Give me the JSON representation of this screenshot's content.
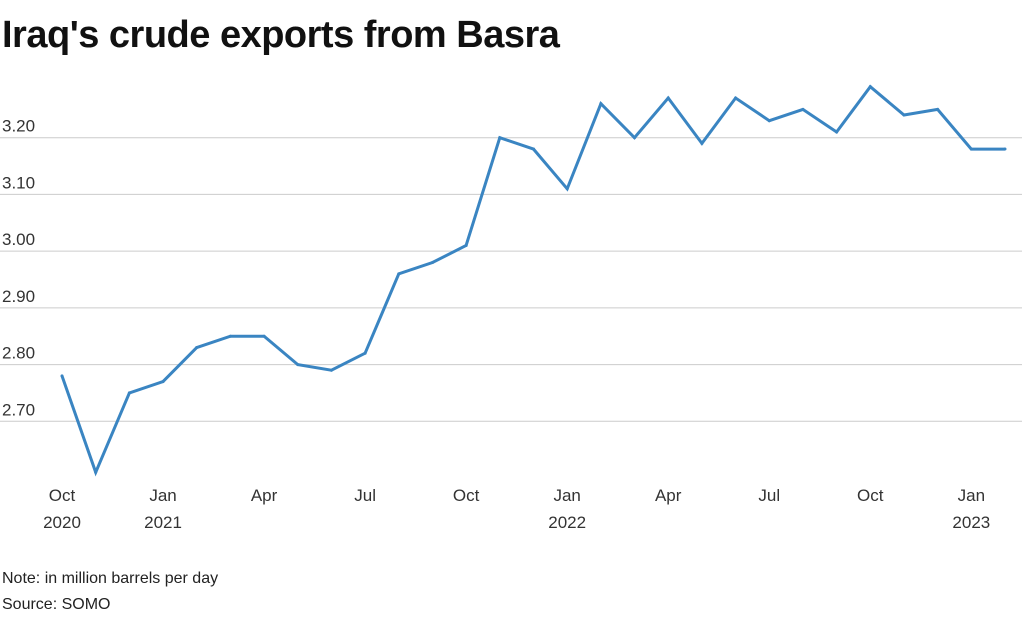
{
  "title": "Iraq's crude exports from Basra",
  "note": "Note: in million barrels per day",
  "source": "Source: SOMO",
  "colors": {
    "line": "#3a85c2",
    "grid": "#cccccc",
    "text": "#333333"
  },
  "chart_data": {
    "type": "line",
    "title": "Iraq's crude exports from Basra",
    "xlabel": "",
    "ylabel": "",
    "grid": true,
    "ylim": [
      2.6,
      3.3
    ],
    "yticks": [
      "2.70",
      "2.80",
      "2.90",
      "3.00",
      "3.10",
      "3.20"
    ],
    "yticks_values": [
      2.7,
      2.8,
      2.9,
      3.0,
      3.1,
      3.2
    ],
    "x": [
      "2020-10",
      "2020-11",
      "2020-12",
      "2021-01",
      "2021-02",
      "2021-03",
      "2021-04",
      "2021-05",
      "2021-06",
      "2021-07",
      "2021-08",
      "2021-09",
      "2021-10",
      "2021-11",
      "2021-12",
      "2022-01",
      "2022-02",
      "2022-03",
      "2022-04",
      "2022-05",
      "2022-06",
      "2022-07",
      "2022-08",
      "2022-09",
      "2022-10",
      "2022-11",
      "2022-12",
      "2023-01",
      "2023-02"
    ],
    "xticks": [
      {
        "x": "2020-10",
        "label": "Oct",
        "year": "2020"
      },
      {
        "x": "2021-01",
        "label": "Jan",
        "year": "2021"
      },
      {
        "x": "2021-04",
        "label": "Apr",
        "year": ""
      },
      {
        "x": "2021-07",
        "label": "Jul",
        "year": ""
      },
      {
        "x": "2021-10",
        "label": "Oct",
        "year": ""
      },
      {
        "x": "2022-01",
        "label": "Jan",
        "year": "2022"
      },
      {
        "x": "2022-04",
        "label": "Apr",
        "year": ""
      },
      {
        "x": "2022-07",
        "label": "Jul",
        "year": ""
      },
      {
        "x": "2022-10",
        "label": "Oct",
        "year": ""
      },
      {
        "x": "2023-01",
        "label": "Jan",
        "year": "2023"
      }
    ],
    "series": [
      {
        "values": [
          2.78,
          2.61,
          2.75,
          2.77,
          2.83,
          2.85,
          2.85,
          2.8,
          2.79,
          2.82,
          2.96,
          2.98,
          3.01,
          3.2,
          3.18,
          3.11,
          3.26,
          3.2,
          3.27,
          3.19,
          3.27,
          3.23,
          3.25,
          3.21,
          3.29,
          3.24,
          3.25,
          3.18,
          3.18
        ]
      }
    ]
  }
}
